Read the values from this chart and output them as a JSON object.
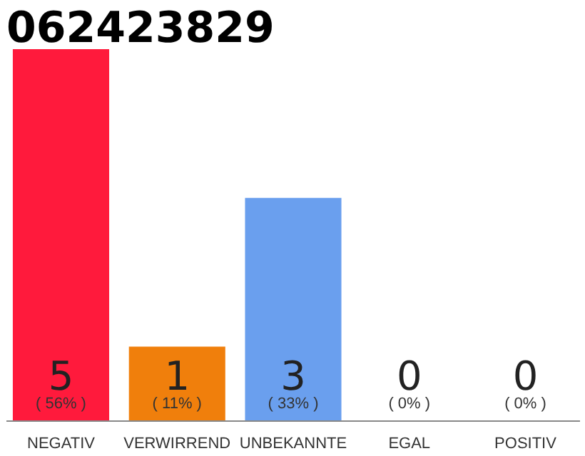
{
  "chart_data": {
    "type": "bar",
    "title": "062423829",
    "categories": [
      "NEGATIV",
      "VERWIRREND",
      "UNBEKANNTE",
      "EGAL",
      "POSITIV"
    ],
    "colors": [
      "#ff1a3c",
      "#f07f0c",
      "#6a9fee",
      "#efefef",
      "#efefef"
    ],
    "values": [
      5,
      1,
      3,
      0,
      0
    ],
    "ylim": [
      0,
      5
    ],
    "data_labels": true,
    "tick_labels": "x",
    "annotations": [
      {
        "text": "( 56% )",
        "x": "NEGATIV",
        "y": 0
      },
      {
        "text": "( 11% )",
        "x": "VERWIRREND",
        "y": 0
      },
      {
        "text": "( 33% )",
        "x": "UNBEKANNTE",
        "y": 0
      },
      {
        "text": "( 0% )",
        "x": "EGAL",
        "y": 0
      },
      {
        "text": "( 0% )",
        "x": "POSITIV",
        "y": 0
      }
    ]
  }
}
